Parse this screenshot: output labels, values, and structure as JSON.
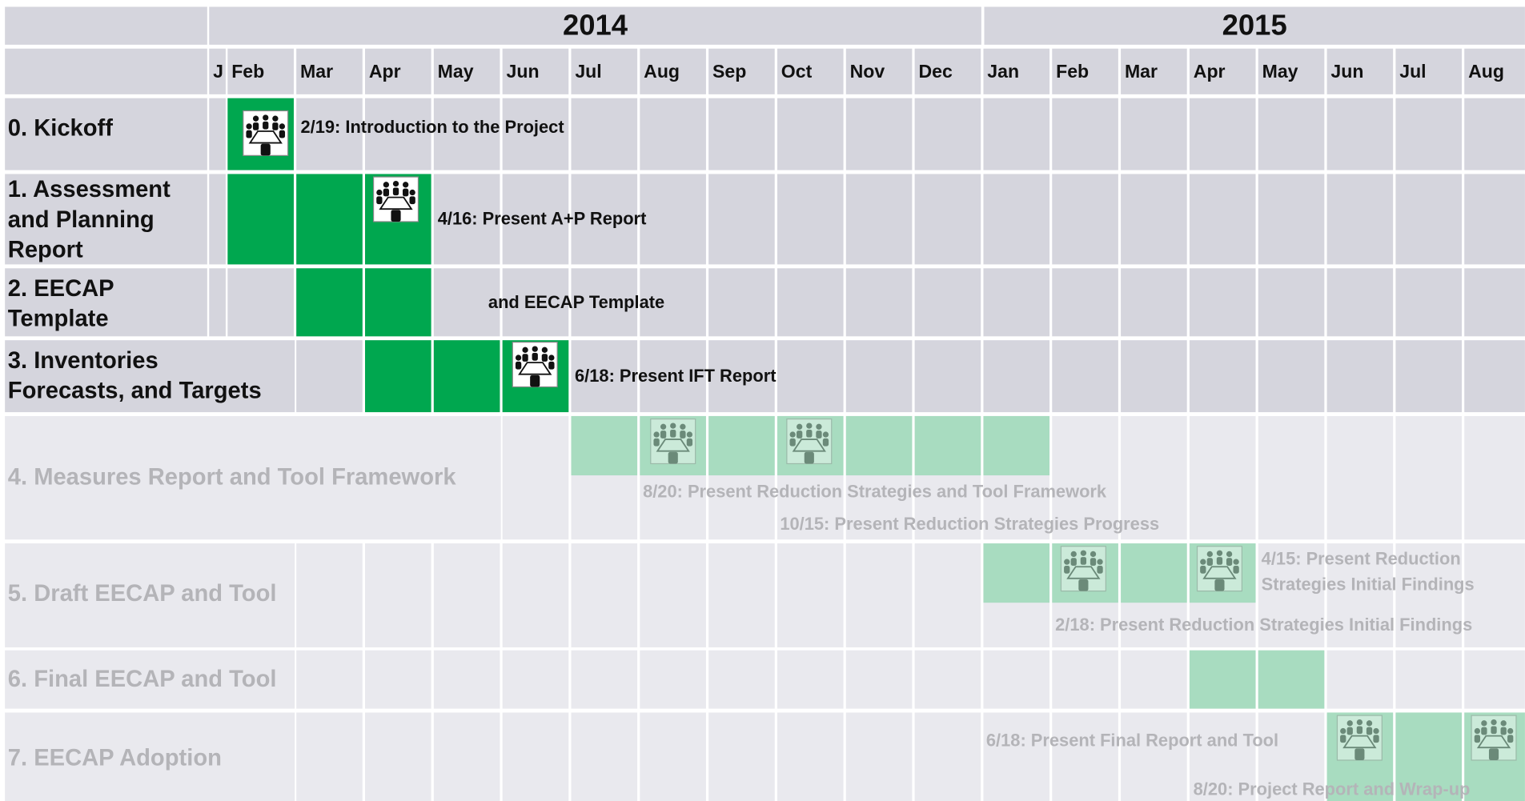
{
  "years": [
    "2014",
    "2015"
  ],
  "months": [
    "J",
    "Feb",
    "Mar",
    "Apr",
    "May",
    "Jun",
    "Jul",
    "Aug",
    "Sep",
    "Oct",
    "Nov",
    "Dec",
    "Jan",
    "Feb",
    "Mar",
    "Apr",
    "May",
    "Jun",
    "Jul",
    "Aug"
  ],
  "tasks": [
    {
      "name": "0. Kickoff",
      "annotations": [
        "2/19: Introduction to the Project"
      ]
    },
    {
      "name": "1. Assessment and Planning Report",
      "annotations": [
        "4/16: Present A+P Report"
      ]
    },
    {
      "name": "2. EECAP Template",
      "annotations": [
        "and EECAP Template"
      ]
    },
    {
      "name": "3. Inventories Forecasts, and Targets",
      "annotations": [
        "6/18: Present IFT Report"
      ]
    },
    {
      "name": "4. Measures Report and Tool Framework",
      "annotations": [
        "8/20: Present Reduction Strategies and Tool Framework",
        "10/15: Present Reduction Strategies Progress"
      ]
    },
    {
      "name": "5. Draft EECAP and Tool",
      "annotations": [
        "4/15: Present Reduction Strategies Initial Findings",
        "2/18: Present Reduction Strategies Initial Findings"
      ]
    },
    {
      "name": "6. Final EECAP and Tool",
      "annotations": []
    },
    {
      "name": "7. EECAP Adoption",
      "annotations": [
        "6/18: Present Final Report and Tool",
        "8/20: Project Report and Wrap-up"
      ]
    }
  ]
}
